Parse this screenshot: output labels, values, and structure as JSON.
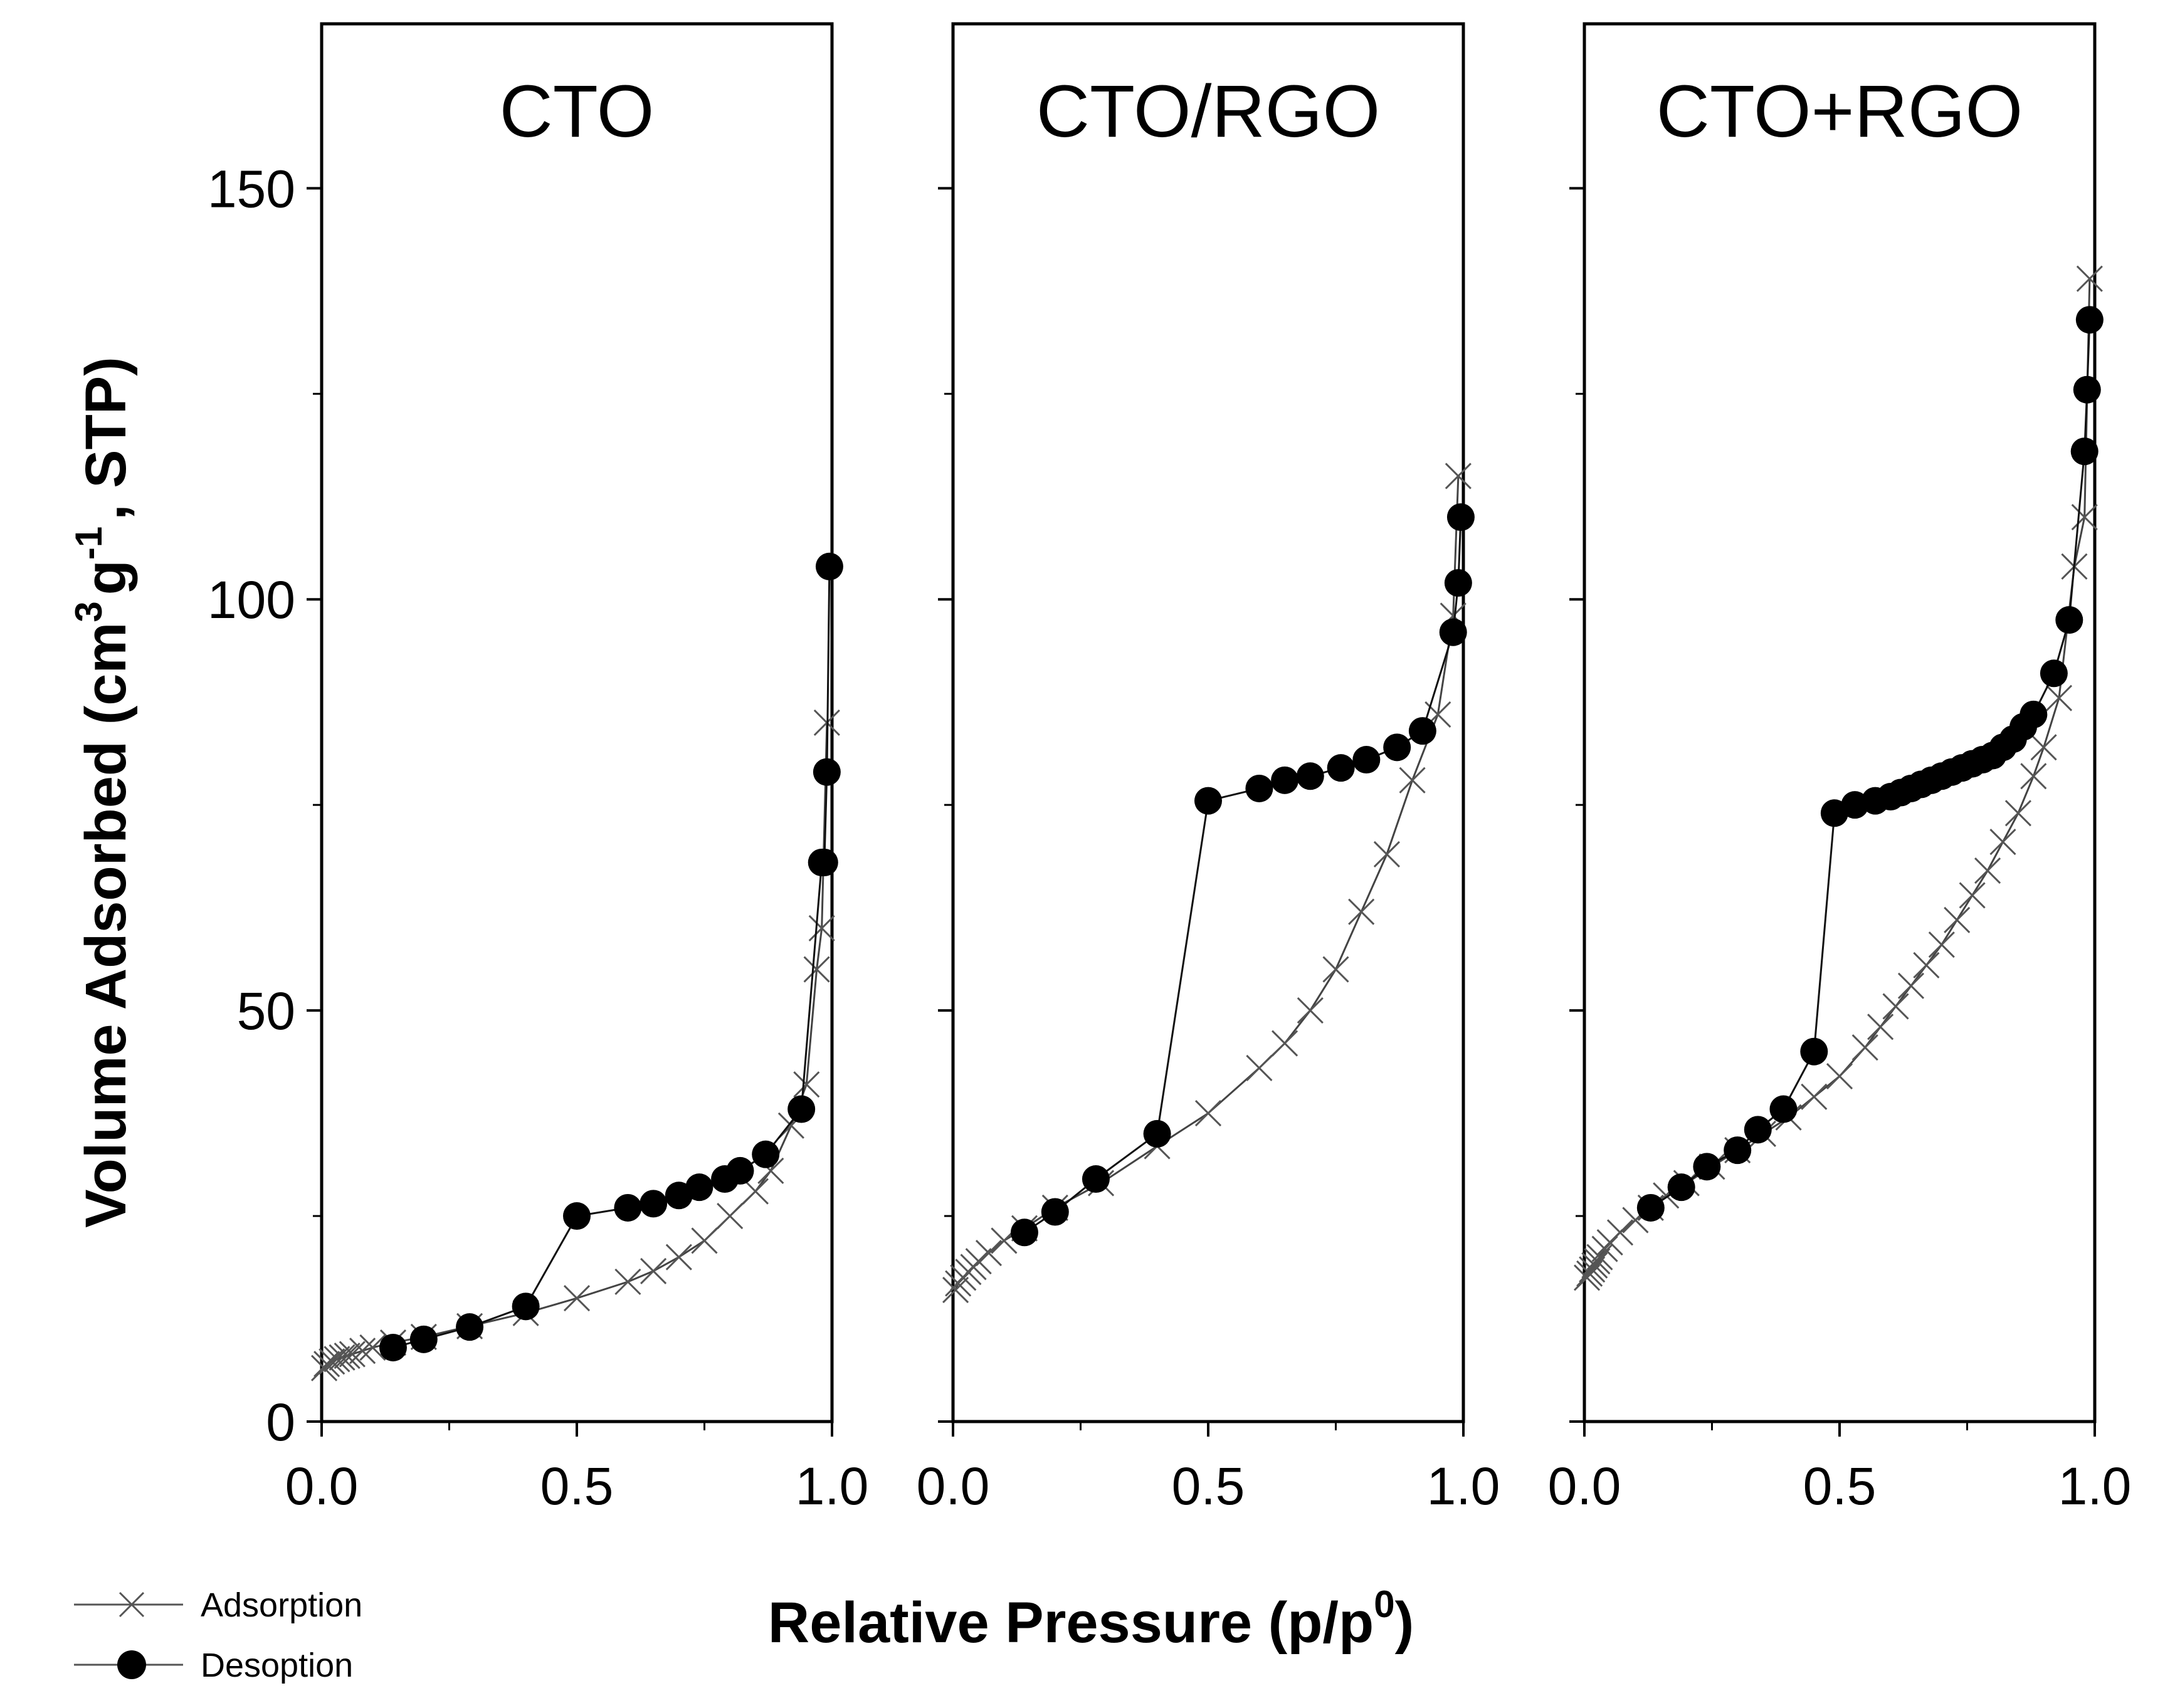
{
  "chart_data": {
    "type": "scatter",
    "ylabel": "Volume Adsorbed (cm^3 g^-1, STP)",
    "ylabel_parts": {
      "main": "Volume Adsorbed (cm",
      "sup1": "3",
      "mid": "g",
      "sup2": "-1",
      "end": ", STP)"
    },
    "xlabel": "Relative Pressure (p/p^0)",
    "xlabel_parts": {
      "main": "Relative Pressure (p/p",
      "sup": "0",
      "end": ")"
    },
    "xlim": [
      0,
      1
    ],
    "ylim": [
      0,
      170
    ],
    "x_ticks": [
      "0.0",
      "0.5",
      "1.0"
    ],
    "x_tick_values": [
      0,
      0.5,
      1.0
    ],
    "y_ticks": [
      "0",
      "50",
      "100",
      "150"
    ],
    "y_tick_values": [
      0,
      50,
      100,
      150
    ],
    "legend": [
      {
        "name": "Adsorption",
        "marker": "x"
      },
      {
        "name": "Desoption",
        "marker": "filled-circle"
      }
    ],
    "panels": [
      {
        "title": "CTO",
        "series": [
          {
            "name": "Adsorption",
            "x": [
              0.005,
              0.01,
              0.02,
              0.03,
              0.04,
              0.05,
              0.06,
              0.08,
              0.1,
              0.14,
              0.2,
              0.29,
              0.4,
              0.5,
              0.6,
              0.65,
              0.7,
              0.75,
              0.8,
              0.85,
              0.88,
              0.92,
              0.95,
              0.97,
              0.98,
              0.99
            ],
            "y": [
              6.5,
              7.0,
              7.3,
              7.6,
              7.8,
              8.0,
              8.2,
              8.6,
              9.0,
              9.6,
              10.3,
              11.6,
              13.2,
              15.0,
              17.0,
              18.3,
              20.0,
              22.0,
              25.0,
              28.0,
              30.5,
              36.0,
              41.0,
              55.0,
              60.0,
              85.0
            ]
          },
          {
            "name": "Desoption",
            "x": [
              0.995,
              0.99,
              0.985,
              0.98,
              0.94,
              0.87,
              0.82,
              0.79,
              0.74,
              0.7,
              0.65,
              0.6,
              0.5,
              0.4,
              0.29,
              0.2,
              0.14
            ],
            "y": [
              104.0,
              79.0,
              68.0,
              68.0,
              38.0,
              32.5,
              30.5,
              29.5,
              28.5,
              27.5,
              26.5,
              26.0,
              25.0,
              14.0,
              11.5,
              10.0,
              9.0
            ]
          }
        ]
      },
      {
        "title": "CTO/RGO",
        "series": [
          {
            "name": "Adsorption",
            "x": [
              0.005,
              0.01,
              0.02,
              0.03,
              0.04,
              0.05,
              0.07,
              0.1,
              0.14,
              0.2,
              0.29,
              0.4,
              0.5,
              0.6,
              0.65,
              0.7,
              0.75,
              0.8,
              0.85,
              0.9,
              0.95,
              0.98,
              0.99
            ],
            "y": [
              16.0,
              16.8,
              17.5,
              18.2,
              18.8,
              19.5,
              20.5,
              22.0,
              23.5,
              26.0,
              29.0,
              33.5,
              37.5,
              43.0,
              46.0,
              50.0,
              55.0,
              62.0,
              69.0,
              78.0,
              86.0,
              98.0,
              115.0
            ]
          },
          {
            "name": "Desoption",
            "x": [
              0.995,
              0.99,
              0.98,
              0.92,
              0.87,
              0.81,
              0.76,
              0.7,
              0.65,
              0.6,
              0.5,
              0.4,
              0.28,
              0.2,
              0.14
            ],
            "y": [
              110.0,
              102.0,
              96.0,
              84.0,
              82.0,
              80.5,
              79.5,
              78.5,
              78.0,
              77.0,
              75.5,
              35.0,
              29.5,
              25.5,
              23.0
            ]
          }
        ]
      },
      {
        "title": "CTO+RGO",
        "series": [
          {
            "name": "Adsorption",
            "x": [
              0.005,
              0.01,
              0.015,
              0.02,
              0.025,
              0.03,
              0.04,
              0.05,
              0.07,
              0.1,
              0.13,
              0.16,
              0.2,
              0.25,
              0.3,
              0.35,
              0.4,
              0.45,
              0.5,
              0.55,
              0.58,
              0.61,
              0.64,
              0.67,
              0.7,
              0.73,
              0.76,
              0.79,
              0.82,
              0.85,
              0.88,
              0.9,
              0.93,
              0.96,
              0.98,
              0.99
            ],
            "y": [
              17.5,
              18.0,
              18.5,
              19.0,
              19.5,
              20.0,
              21.0,
              21.8,
              23.0,
              24.5,
              26.0,
              27.5,
              29.0,
              31.0,
              33.0,
              35.0,
              37.0,
              39.5,
              42.0,
              45.5,
              48.0,
              50.5,
              53.0,
              55.5,
              58.0,
              61.0,
              64.0,
              67.0,
              70.5,
              74.0,
              78.5,
              82.0,
              88.0,
              104.0,
              110.0,
              139.0
            ]
          },
          {
            "name": "Desoption",
            "x": [
              0.99,
              0.985,
              0.98,
              0.95,
              0.92,
              0.88,
              0.86,
              0.84,
              0.82,
              0.8,
              0.78,
              0.76,
              0.74,
              0.72,
              0.7,
              0.68,
              0.66,
              0.64,
              0.62,
              0.6,
              0.57,
              0.53,
              0.49,
              0.45,
              0.39,
              0.34,
              0.3,
              0.24,
              0.19,
              0.13
            ],
            "y": [
              134.0,
              125.5,
              118.0,
              97.5,
              91.0,
              86.0,
              84.5,
              83.0,
              82.0,
              81.0,
              80.5,
              80.0,
              79.5,
              79.0,
              78.5,
              78.0,
              77.5,
              77.0,
              76.5,
              76.0,
              75.5,
              75.0,
              74.0,
              45.0,
              38.0,
              35.5,
              33.0,
              31.0,
              28.5,
              26.0
            ]
          }
        ]
      }
    ]
  }
}
